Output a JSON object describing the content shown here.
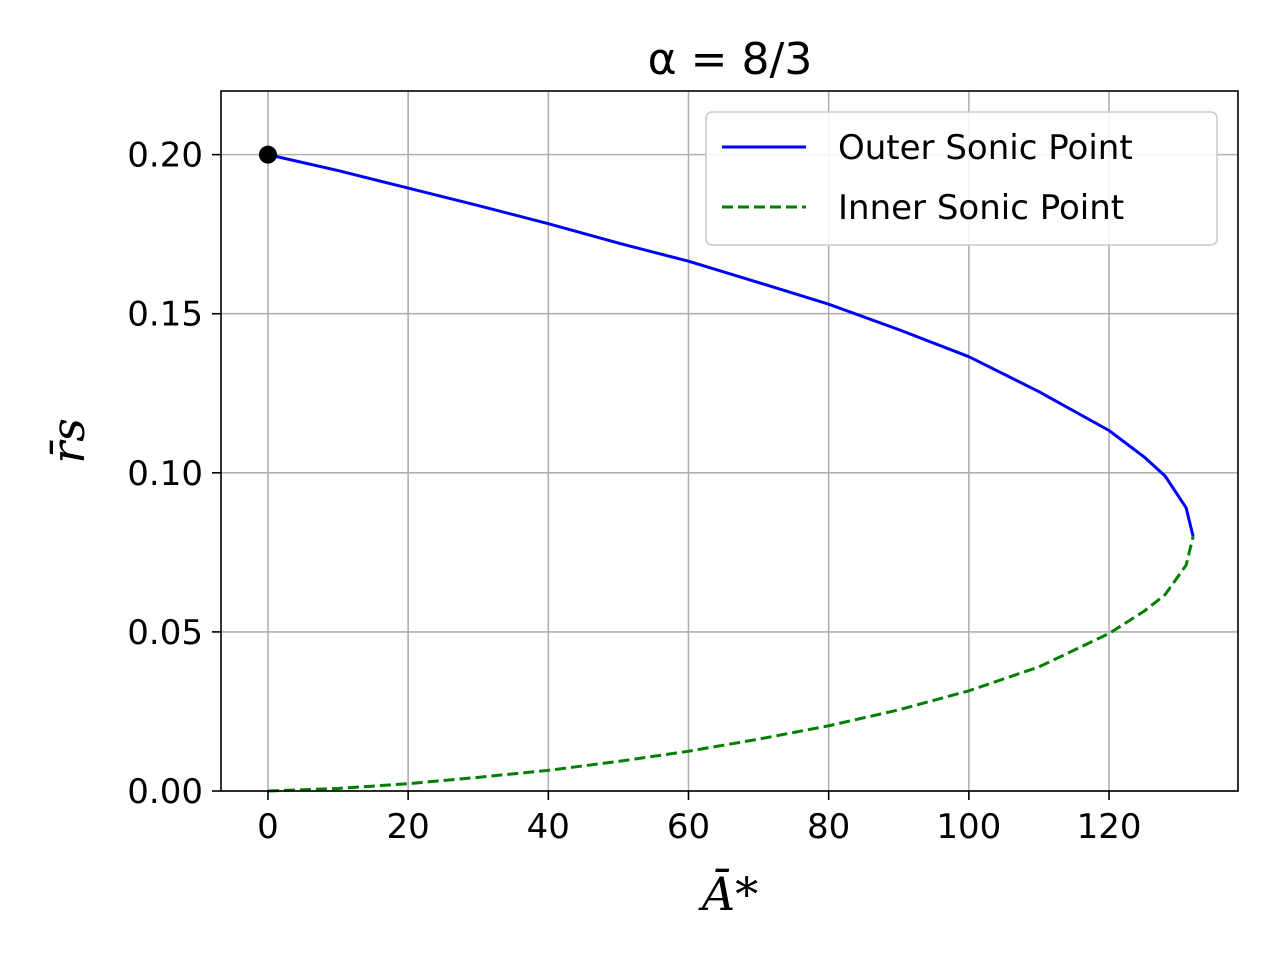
{
  "chart_data": {
    "type": "line",
    "title": "α = 8/3",
    "xlabel": "Ā*",
    "ylabel": "r̄s",
    "xlim": [
      -6.7,
      138.4
    ],
    "ylim": [
      0,
      0.22
    ],
    "xticks": [
      0,
      20,
      40,
      60,
      80,
      100,
      120
    ],
    "xtick_labels": [
      "0",
      "20",
      "40",
      "60",
      "80",
      "100",
      "120"
    ],
    "yticks": [
      0,
      0.05,
      0.1,
      0.15,
      0.2
    ],
    "ytick_labels": [
      "0.00",
      "0.05",
      "0.10",
      "0.15",
      "0.20"
    ],
    "grid": true,
    "legend_position": "top-right",
    "series": [
      {
        "name": "Outer Sonic Point",
        "color": "#0000ff",
        "style": "solid",
        "x": [
          0,
          10,
          20,
          30,
          40,
          50,
          60,
          70,
          80,
          90,
          100,
          110,
          120,
          125,
          128,
          131,
          132
        ],
        "y": [
          0.2,
          0.195,
          0.1895,
          0.184,
          0.1783,
          0.1722,
          0.1665,
          0.1598,
          0.153,
          0.145,
          0.1365,
          0.1255,
          0.1133,
          0.105,
          0.099,
          0.089,
          0.08
        ]
      },
      {
        "name": "Inner Sonic Point",
        "color": "#008000",
        "style": "dashed",
        "x": [
          0,
          10,
          20,
          30,
          40,
          50,
          60,
          70,
          80,
          90,
          100,
          110,
          120,
          125,
          128,
          131,
          132
        ],
        "y": [
          0.0,
          0.0008,
          0.0023,
          0.0043,
          0.0065,
          0.0093,
          0.0125,
          0.0163,
          0.0205,
          0.0255,
          0.0315,
          0.039,
          0.0495,
          0.0565,
          0.0617,
          0.071,
          0.08
        ]
      }
    ],
    "markers": [
      {
        "x": 0,
        "y": 0.2,
        "color": "#000000"
      }
    ]
  }
}
